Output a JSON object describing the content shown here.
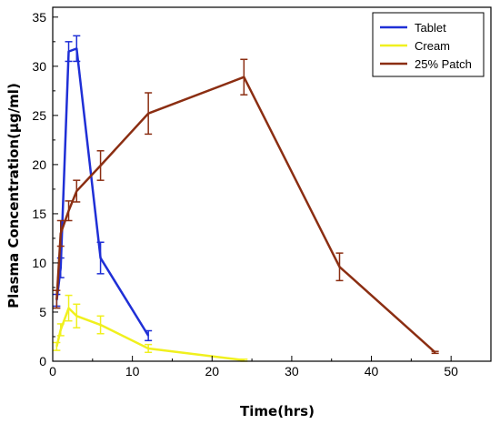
{
  "chart_data": {
    "type": "line",
    "title": "",
    "xlabel": "Time(hrs)",
    "ylabel": "Plasma Concentration(µg/ml)",
    "xlim": [
      0,
      55
    ],
    "ylim": [
      0,
      36
    ],
    "xticks": [
      0,
      10,
      20,
      30,
      40,
      50
    ],
    "yticks": [
      0,
      5,
      10,
      15,
      20,
      25,
      30,
      35
    ],
    "grid": false,
    "legend_position": "top-right",
    "series": [
      {
        "name": "Tablet",
        "color": "#1f2fd6",
        "x": [
          0.5,
          1,
          2,
          3,
          6,
          12
        ],
        "y": [
          6.2,
          9.5,
          31.5,
          31.8,
          10.5,
          2.6
        ],
        "err": [
          0.6,
          1.0,
          1.0,
          1.3,
          1.6,
          0.5
        ]
      },
      {
        "name": "Cream",
        "color": "#f0f01e",
        "x": [
          0.5,
          1,
          2,
          3,
          6,
          12,
          24
        ],
        "y": [
          1.5,
          3.2,
          5.4,
          4.6,
          3.7,
          1.3,
          0.1
        ],
        "err": [
          0.4,
          0.6,
          1.3,
          1.2,
          0.9,
          0.4,
          0.1
        ]
      },
      {
        "name": "25% Patch",
        "color": "#8b2e12",
        "x": [
          0.5,
          1,
          2,
          3,
          6,
          12,
          24,
          36,
          48
        ],
        "y": [
          6.3,
          13.0,
          15.3,
          17.3,
          19.9,
          25.2,
          28.9,
          9.6,
          0.9
        ],
        "err": [
          0.9,
          1.3,
          1.0,
          1.1,
          1.5,
          2.1,
          1.8,
          1.4,
          0.1
        ]
      }
    ]
  }
}
